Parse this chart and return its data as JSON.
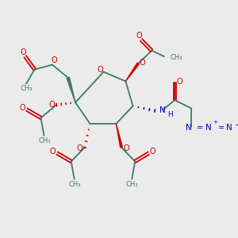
{
  "bg_color": "#ebebeb",
  "bond_color": "#3a7a6a",
  "red_color": "#cc0000",
  "blue_color": "#0000bb",
  "lw": 1.3,
  "fs": 6.5,
  "xlim": [
    0,
    10
  ],
  "ylim": [
    0,
    10
  ]
}
